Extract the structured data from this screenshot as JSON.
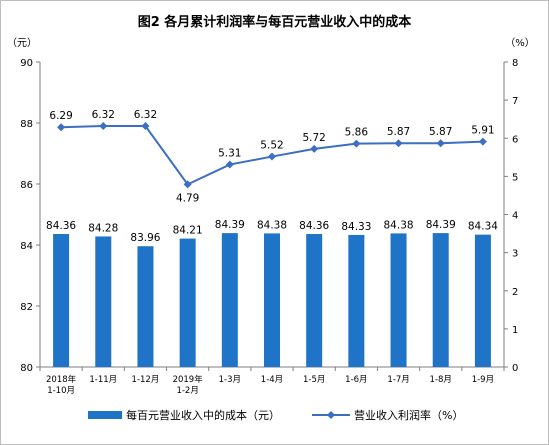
{
  "chart_data": {
    "type": "bar+line",
    "title": "图2  各月累计利润率与每百元营业收入中的成本",
    "y_left_unit": "（元）",
    "y_right_unit": "（%）",
    "y_left_lim": [
      80,
      90
    ],
    "y_left_ticks": [
      "80",
      "82",
      "84",
      "86",
      "88",
      "90"
    ],
    "y_right_lim": [
      0,
      8
    ],
    "y_right_ticks": [
      "0",
      "1",
      "2",
      "3",
      "4",
      "5",
      "6",
      "7",
      "8"
    ],
    "categories": [
      [
        "2018年",
        "1-10月"
      ],
      [
        "1-11月"
      ],
      [
        "1-12月"
      ],
      [
        "2019年",
        "1-2月"
      ],
      [
        "1-3月"
      ],
      [
        "1-4月"
      ],
      [
        "1-5月"
      ],
      [
        "1-6月"
      ],
      [
        "1-7月"
      ],
      [
        "1-8月"
      ],
      [
        "1-9月"
      ]
    ],
    "series": [
      {
        "name": "每百元营业收入中的成本（元）",
        "kind": "bar",
        "axis": "left",
        "color": "#1f74c8",
        "values": [
          84.36,
          84.28,
          83.96,
          84.21,
          84.39,
          84.38,
          84.36,
          84.33,
          84.38,
          84.39,
          84.34
        ],
        "labels": [
          "84.36",
          "84.28",
          "83.96",
          "84.21",
          "84.39",
          "84.38",
          "84.36",
          "84.33",
          "84.38",
          "84.39",
          "84.34"
        ]
      },
      {
        "name": "营业收入利润率（%）",
        "kind": "line",
        "axis": "right",
        "color": "#3c6fc4",
        "values": [
          6.29,
          6.32,
          6.32,
          4.79,
          5.31,
          5.52,
          5.72,
          5.86,
          5.87,
          5.87,
          5.91
        ],
        "labels": [
          "6.29",
          "6.32",
          "6.32",
          "4.79",
          "5.31",
          "5.52",
          "5.72",
          "5.86",
          "5.87",
          "5.87",
          "5.91"
        ]
      }
    ],
    "grid": false,
    "legend_position": "bottom"
  }
}
